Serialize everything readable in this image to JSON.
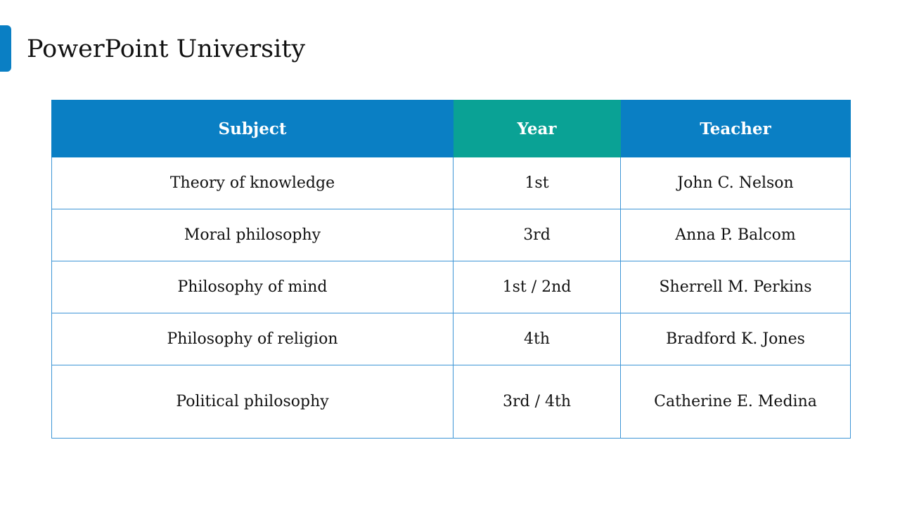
{
  "slide": {
    "title": "PowerPoint University",
    "accent_color": "#0a7fc4"
  },
  "table": {
    "header_colors": {
      "primary": "#0a7fc4",
      "highlight": "#0aa295"
    },
    "headers": {
      "subject": "Subject",
      "year": "Year",
      "teacher": "Teacher"
    },
    "rows": [
      {
        "subject": "Theory of knowledge",
        "year": "1st",
        "teacher": "John C. Nelson"
      },
      {
        "subject": "Moral philosophy",
        "year": "3rd",
        "teacher": "Anna P. Balcom"
      },
      {
        "subject": "Philosophy of mind",
        "year": "1st / 2nd",
        "teacher": "Sherrell M. Perkins"
      },
      {
        "subject": "Philosophy of religion",
        "year": "4th",
        "teacher": "Bradford K. Jones"
      },
      {
        "subject": "Political philosophy",
        "year": "3rd / 4th",
        "teacher": "Catherine E. Medina"
      }
    ]
  }
}
